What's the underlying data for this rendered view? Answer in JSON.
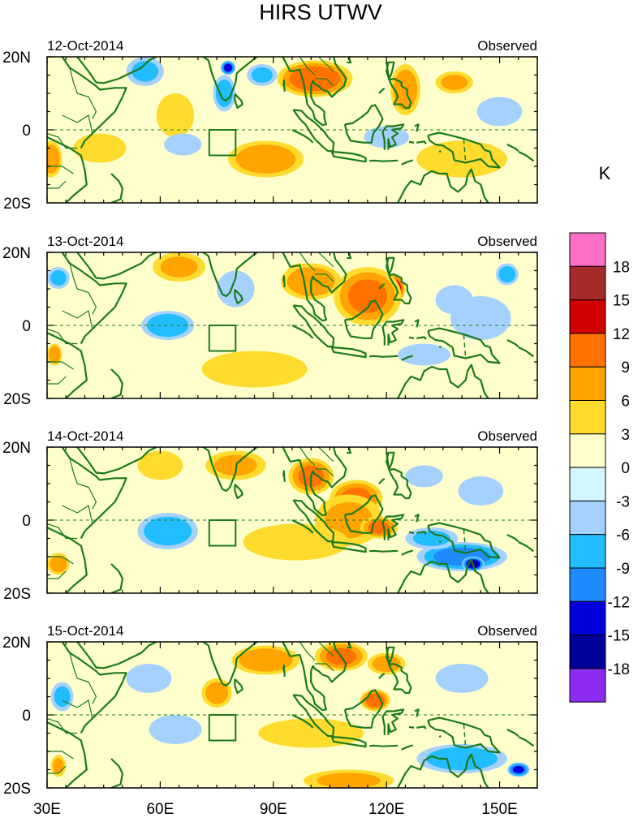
{
  "chart_data": {
    "type": "heatmap",
    "title": "HIRS UTWV",
    "units_label": "K",
    "x_ticks": [
      {
        "value": 30,
        "label": "30E"
      },
      {
        "value": 60,
        "label": "60E"
      },
      {
        "value": 90,
        "label": "90E"
      },
      {
        "value": 120,
        "label": "120E"
      },
      {
        "value": 150,
        "label": "150E"
      }
    ],
    "y_ticks": [
      {
        "value": 20,
        "label": "20N"
      },
      {
        "value": 0,
        "label": "0"
      },
      {
        "value": -20,
        "label": "20S"
      }
    ],
    "xlim": [
      30,
      160
    ],
    "ylim": [
      -20,
      20
    ],
    "colorbar": {
      "colors": [
        "#ff6ec7",
        "#a52a2a",
        "#d10000",
        "#ff7200",
        "#ffa400",
        "#ffdb2e",
        "#ffffcc",
        "#d2f7ff",
        "#a5d1ff",
        "#22bdff",
        "#1f8bff",
        "#0000dd",
        "#000099",
        "#8b2cf0"
      ],
      "labels": [
        "18",
        "15",
        "12",
        "9",
        "6",
        "3",
        "0",
        "-3",
        "-6",
        "-9",
        "-12",
        "-15",
        "-18"
      ]
    },
    "box_region": {
      "lon": [
        73,
        80
      ],
      "lat": [
        -7,
        0
      ]
    },
    "panels": [
      {
        "date": "12-Oct-2014",
        "label": "Observed",
        "blobs": [
          {
            "lon": 103,
            "lat": 16,
            "value": 17,
            "rx": 4,
            "ry": 3
          },
          {
            "lon": 101,
            "lat": 14,
            "value": 11,
            "rx": 10,
            "ry": 5
          },
          {
            "lon": 88,
            "lat": -9,
            "value": 12,
            "rx": 4,
            "ry": 2
          },
          {
            "lon": 88,
            "lat": -8,
            "value": 8,
            "rx": 10,
            "ry": 5
          },
          {
            "lon": 125,
            "lat": 11,
            "value": 8,
            "rx": 4,
            "ry": 7
          },
          {
            "lon": 138,
            "lat": 13,
            "value": 6,
            "rx": 5,
            "ry": 3
          },
          {
            "lon": 44,
            "lat": -5,
            "value": 5,
            "rx": 7,
            "ry": 4
          },
          {
            "lon": 64,
            "lat": 4,
            "value": 5,
            "rx": 5,
            "ry": 6
          },
          {
            "lon": 31,
            "lat": -8,
            "value": 8,
            "rx": 3,
            "ry": 5
          },
          {
            "lon": 77,
            "lat": 10,
            "value": -7,
            "rx": 3,
            "ry": 5
          },
          {
            "lon": 56,
            "lat": 16,
            "value": -6,
            "rx": 5,
            "ry": 4
          },
          {
            "lon": 87,
            "lat": 15,
            "value": -6,
            "rx": 4,
            "ry": 3
          },
          {
            "lon": 78,
            "lat": 17,
            "value": -13,
            "rx": 2,
            "ry": 2
          },
          {
            "lon": 66,
            "lat": -4,
            "value": -5,
            "rx": 5,
            "ry": 3
          },
          {
            "lon": 120,
            "lat": -2,
            "value": -4,
            "rx": 6,
            "ry": 3
          },
          {
            "lon": 150,
            "lat": 5,
            "value": -3,
            "rx": 6,
            "ry": 4
          },
          {
            "lon": 140,
            "lat": -8,
            "value": 3,
            "rx": 12,
            "ry": 5
          }
        ]
      },
      {
        "date": "13-Oct-2014",
        "label": "Observed",
        "blobs": [
          {
            "lon": 97,
            "lat": 13,
            "value": 14,
            "rx": 4,
            "ry": 4
          },
          {
            "lon": 122,
            "lat": 10,
            "value": 15,
            "rx": 3,
            "ry": 4
          },
          {
            "lon": 115,
            "lat": 8,
            "value": 9,
            "rx": 9,
            "ry": 8
          },
          {
            "lon": 100,
            "lat": 12,
            "value": 8,
            "rx": 8,
            "ry": 5
          },
          {
            "lon": 65,
            "lat": 16,
            "value": 6,
            "rx": 7,
            "ry": 4
          },
          {
            "lon": 85,
            "lat": -12,
            "value": 5,
            "rx": 14,
            "ry": 5
          },
          {
            "lon": 32,
            "lat": -8,
            "value": 8,
            "rx": 2,
            "ry": 3
          },
          {
            "lon": 62,
            "lat": 0,
            "value": -8,
            "rx": 7,
            "ry": 4
          },
          {
            "lon": 80,
            "lat": 10,
            "value": -5,
            "rx": 5,
            "ry": 5
          },
          {
            "lon": 138,
            "lat": 7,
            "value": -5,
            "rx": 5,
            "ry": 4
          },
          {
            "lon": 145,
            "lat": 2,
            "value": -3,
            "rx": 8,
            "ry": 6
          },
          {
            "lon": 130,
            "lat": -8,
            "value": -4,
            "rx": 7,
            "ry": 3
          },
          {
            "lon": 33,
            "lat": 13,
            "value": -6,
            "rx": 3,
            "ry": 3
          },
          {
            "lon": 152,
            "lat": 14,
            "value": -7,
            "rx": 3,
            "ry": 3
          }
        ]
      },
      {
        "date": "14-Oct-2014",
        "label": "Observed",
        "blobs": [
          {
            "lon": 100,
            "lat": 12,
            "value": 9,
            "rx": 6,
            "ry": 5
          },
          {
            "lon": 112,
            "lat": 6,
            "value": 9,
            "rx": 7,
            "ry": 5
          },
          {
            "lon": 110,
            "lat": 0,
            "value": 6,
            "rx": 9,
            "ry": 7
          },
          {
            "lon": 118,
            "lat": -2,
            "value": 9,
            "rx": 5,
            "ry": 3
          },
          {
            "lon": 80,
            "lat": 15,
            "value": 6,
            "rx": 8,
            "ry": 4
          },
          {
            "lon": 96,
            "lat": -6,
            "value": 5,
            "rx": 14,
            "ry": 5
          },
          {
            "lon": 60,
            "lat": 15,
            "value": 5,
            "rx": 6,
            "ry": 4
          },
          {
            "lon": 62,
            "lat": -3,
            "value": -8,
            "rx": 8,
            "ry": 5
          },
          {
            "lon": 140,
            "lat": -10,
            "value": -10,
            "rx": 12,
            "ry": 4
          },
          {
            "lon": 143,
            "lat": -12,
            "value": -15,
            "rx": 3,
            "ry": 2
          },
          {
            "lon": 132,
            "lat": -5,
            "value": -6,
            "rx": 7,
            "ry": 3
          },
          {
            "lon": 145,
            "lat": 8,
            "value": -4,
            "rx": 6,
            "ry": 4
          },
          {
            "lon": 130,
            "lat": 12,
            "value": -3,
            "rx": 5,
            "ry": 3
          },
          {
            "lon": 33,
            "lat": -12,
            "value": 7,
            "rx": 3,
            "ry": 3
          }
        ]
      },
      {
        "date": "15-Oct-2014",
        "label": "Observed",
        "blobs": [
          {
            "lon": 88,
            "lat": 15,
            "value": 8,
            "rx": 9,
            "ry": 4
          },
          {
            "lon": 108,
            "lat": 16,
            "value": 9,
            "rx": 7,
            "ry": 4
          },
          {
            "lon": 117,
            "lat": 4,
            "value": 10,
            "rx": 4,
            "ry": 3
          },
          {
            "lon": 120,
            "lat": 14,
            "value": 7,
            "rx": 5,
            "ry": 3
          },
          {
            "lon": 75,
            "lat": 6,
            "value": 7,
            "rx": 4,
            "ry": 4
          },
          {
            "lon": 100,
            "lat": -5,
            "value": 3,
            "rx": 14,
            "ry": 4
          },
          {
            "lon": 110,
            "lat": -18,
            "value": 6,
            "rx": 12,
            "ry": 3
          },
          {
            "lon": 57,
            "lat": 10,
            "value": -5,
            "rx": 6,
            "ry": 4
          },
          {
            "lon": 64,
            "lat": -4,
            "value": -5,
            "rx": 7,
            "ry": 4
          },
          {
            "lon": 140,
            "lat": -12,
            "value": -8,
            "rx": 12,
            "ry": 4
          },
          {
            "lon": 155,
            "lat": -15,
            "value": -12,
            "rx": 3,
            "ry": 2
          },
          {
            "lon": 140,
            "lat": 10,
            "value": -4,
            "rx": 7,
            "ry": 4
          },
          {
            "lon": 34,
            "lat": 5,
            "value": -6,
            "rx": 3,
            "ry": 4
          },
          {
            "lon": 33,
            "lat": -14,
            "value": 6,
            "rx": 2,
            "ry": 3
          }
        ]
      }
    ]
  }
}
